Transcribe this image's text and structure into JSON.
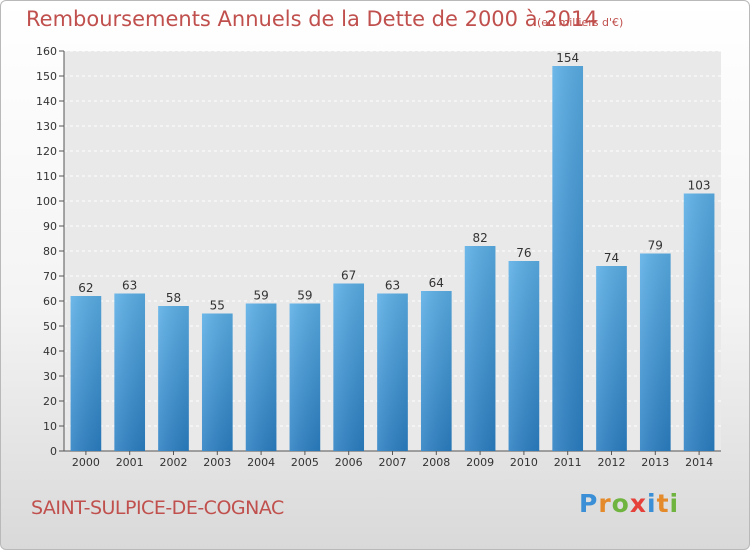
{
  "title": "Remboursements Annuels de la Dette de 2000 à 2014",
  "unit": "(en milliers d'€)",
  "commune": "SAINT-SULPICE-DE-COGNAC",
  "brand": {
    "letters": [
      {
        "ch": "P",
        "color": "#3a8fd6"
      },
      {
        "ch": "r",
        "color": "#e48a2b"
      },
      {
        "ch": "o",
        "color": "#6fb43f"
      },
      {
        "ch": "x",
        "color": "#e5413a"
      },
      {
        "ch": "i",
        "color": "#3a8fd6"
      },
      {
        "ch": "t",
        "color": "#e48a2b"
      },
      {
        "ch": "i",
        "color": "#6fb43f"
      }
    ]
  },
  "colors": {
    "bar_top": "#5aaee6",
    "bar_bottom": "#2b7fc3",
    "title": "#c0504d"
  },
  "chart_data": {
    "type": "bar",
    "title": "Remboursements Annuels de la Dette de 2000 à 2014",
    "categories": [
      "2000",
      "2001",
      "2002",
      "2003",
      "2004",
      "2005",
      "2006",
      "2007",
      "2008",
      "2009",
      "2010",
      "2011",
      "2012",
      "2013",
      "2014"
    ],
    "values": [
      62,
      63,
      58,
      55,
      59,
      59,
      67,
      63,
      64,
      82,
      76,
      154,
      74,
      79,
      103
    ],
    "ylim": [
      0,
      160
    ],
    "yticks": [
      0,
      10,
      20,
      30,
      40,
      50,
      60,
      70,
      80,
      90,
      100,
      110,
      120,
      130,
      140,
      150,
      160
    ],
    "xlabel": "",
    "ylabel": "",
    "grid": true
  }
}
